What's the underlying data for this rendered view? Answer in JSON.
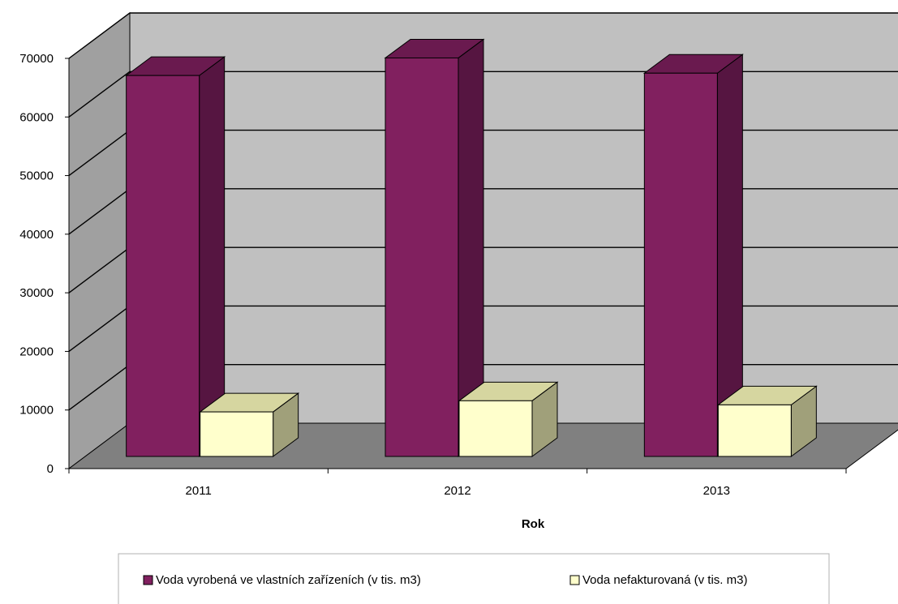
{
  "chart_data": {
    "type": "bar",
    "title": "",
    "xlabel": "Rok",
    "ylabel": "",
    "ylim": [
      0,
      70000
    ],
    "yticks": [
      0,
      10000,
      20000,
      30000,
      40000,
      50000,
      60000,
      70000
    ],
    "categories": [
      "2011",
      "2012",
      "2013"
    ],
    "grid": true,
    "legend_position": "bottom",
    "series": [
      {
        "name": "Voda vyrobená ve vlastních zařízeních (v tis. m3)",
        "values": [
          65000,
          68000,
          65400
        ],
        "color": "#81205F"
      },
      {
        "name": "Voda nefakturovaná (v tis. m3)",
        "values": [
          7600,
          9500,
          8800
        ],
        "color": "#FFFFCC"
      }
    ],
    "colors": {
      "wall_back": "#C0C0C0",
      "wall_side": "#A0A0A0",
      "floor": "#808080",
      "grid": "#000000"
    }
  }
}
